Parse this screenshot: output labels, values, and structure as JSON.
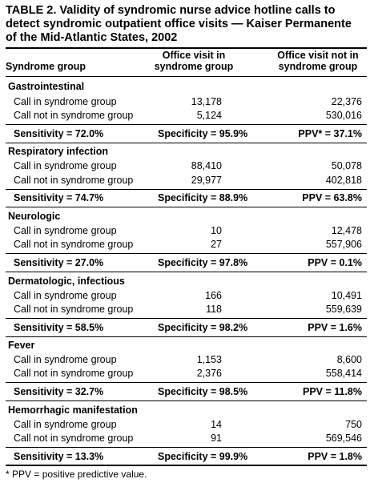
{
  "title": {
    "line1": "TABLE 2. Validity of syndromic nurse advice hotline calls to",
    "line2": "detect syndromic outpatient office visits — Kaiser Permanente",
    "line3": "of the Mid-Atlantic States, 2002"
  },
  "header": {
    "col0": "Syndrome group",
    "col1_line1": "Office visit in",
    "col1_line2": "syndrome group",
    "col2_line1": "Office visit not in",
    "col2_line2": "syndrome group"
  },
  "groups": [
    {
      "name": "Gastrointestinal",
      "rows": [
        {
          "label": "Call in syndrome group",
          "in": "13,178",
          "notin": "22,376"
        },
        {
          "label": "Call not in syndrome group",
          "in": "5,124",
          "notin": "530,016"
        }
      ],
      "sensitivity": "Sensitivity = 72.0%",
      "specificity": "Specificity = 95.9%",
      "ppv": "PPV* = 37.1%"
    },
    {
      "name": "Respiratory infection",
      "rows": [
        {
          "label": "Call in syndrome group",
          "in": "88,410",
          "notin": "50,078"
        },
        {
          "label": "Call not in syndrome group",
          "in": "29,977",
          "notin": "402,818"
        }
      ],
      "sensitivity": "Sensitivity = 74.7%",
      "specificity": "Specificity = 88.9%",
      "ppv": "PPV = 63.8%"
    },
    {
      "name": "Neurologic",
      "rows": [
        {
          "label": "Call in syndrome group",
          "in": "10",
          "notin": "12,478"
        },
        {
          "label": "Call not in syndrome group",
          "in": "27",
          "notin": "557,906"
        }
      ],
      "sensitivity": "Sensitivity = 27.0%",
      "specificity": "Specificity = 97.8%",
      "ppv": "PPV = 0.1%"
    },
    {
      "name": "Dermatologic, infectious",
      "rows": [
        {
          "label": "Call in syndrome group",
          "in": "166",
          "notin": "10,491"
        },
        {
          "label": "Call not in syndrome group",
          "in": "118",
          "notin": "559,639"
        }
      ],
      "sensitivity": "Sensitivity = 58.5%",
      "specificity": "Specificity = 98.2%",
      "ppv": "PPV = 1.6%"
    },
    {
      "name": "Fever",
      "rows": [
        {
          "label": "Call in syndrome group",
          "in": "1,153",
          "notin": "8,600"
        },
        {
          "label": "Call not in syndrome group",
          "in": "2,376",
          "notin": "558,414"
        }
      ],
      "sensitivity": "Sensitivity = 32.7%",
      "specificity": "Specificity = 98.5%",
      "ppv": "PPV = 11.8%"
    },
    {
      "name": "Hemorrhagic manifestation",
      "rows": [
        {
          "label": "Call in syndrome group",
          "in": "14",
          "notin": "750"
        },
        {
          "label": "Call not in syndrome group",
          "in": "91",
          "notin": "569,546"
        }
      ],
      "sensitivity": "Sensitivity = 13.3%",
      "specificity": "Specificity = 99.9%",
      "ppv": "PPV = 1.8%"
    }
  ],
  "footnote": "* PPV = positive predictive value."
}
